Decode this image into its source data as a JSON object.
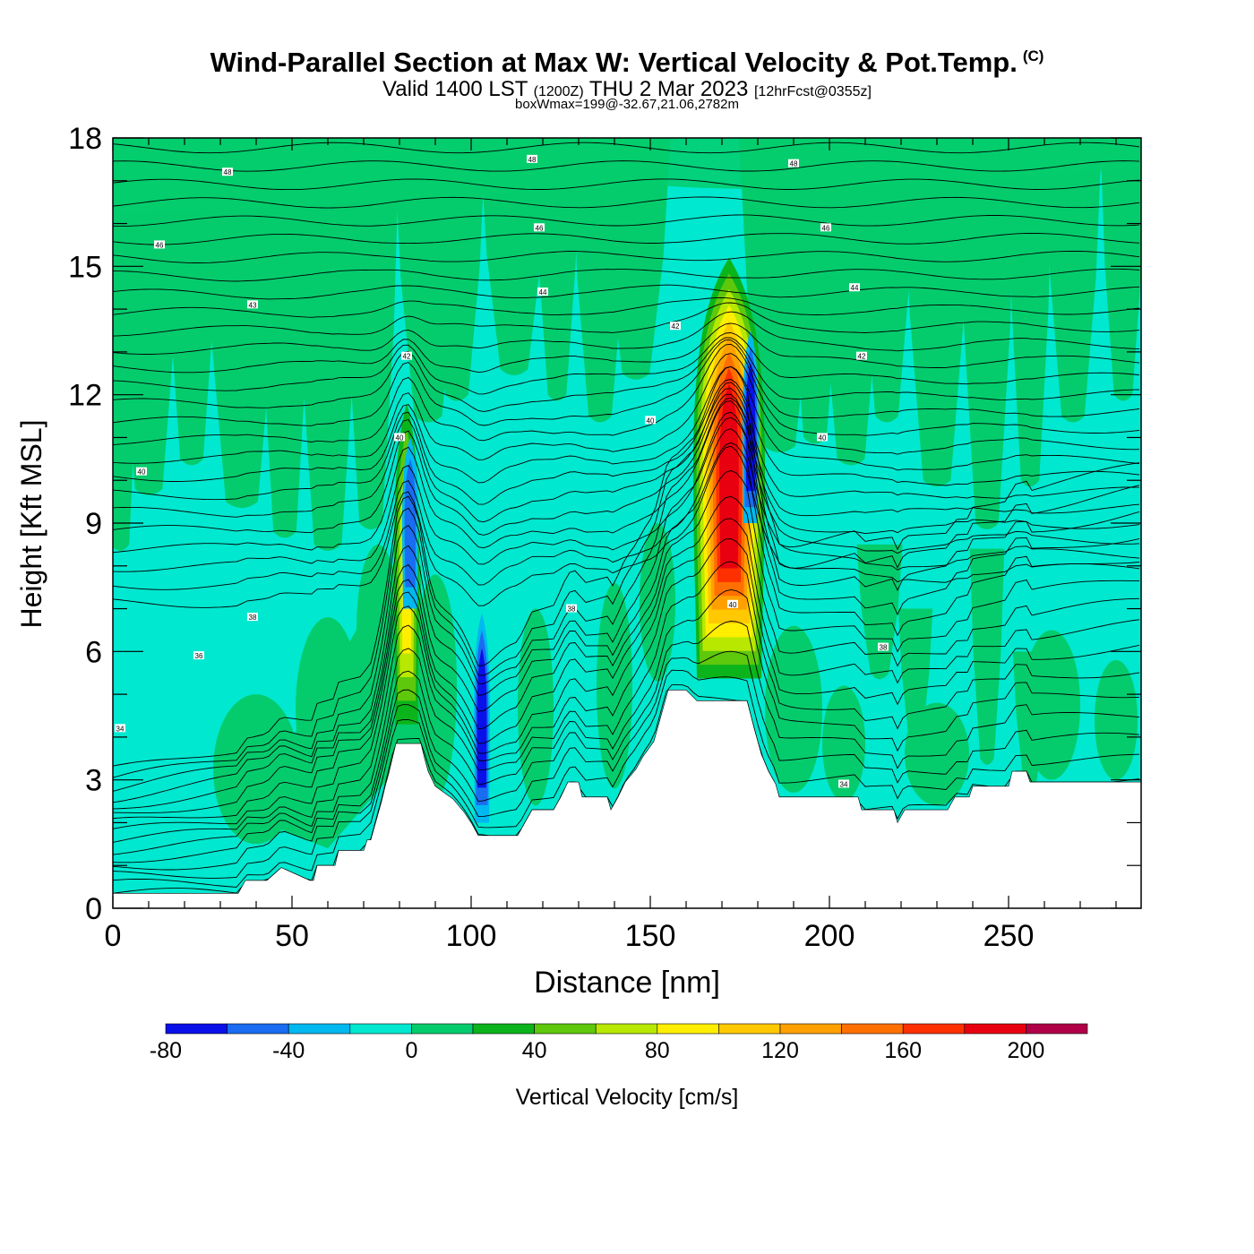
{
  "header": {
    "title": "Wind-Parallel Section at Max W: Vertical Velocity & Pot.Temp.",
    "copyright": "(C)",
    "valid_prefix": "Valid 1400 LST",
    "valid_utc": "(1200Z)",
    "valid_date": "THU 2 Mar 2023",
    "forecast": "[12hrFcst@0355z]",
    "boxwmax": "boxWmax=199@-32.67,21.06,2782m"
  },
  "colorbar": {
    "label": "Vertical Velocity [cm/s]",
    "tick_labels": [
      "-80",
      "-40",
      "0",
      "40",
      "80",
      "120",
      "160",
      "200"
    ],
    "colors": [
      "#0a10e8",
      "#1a6cf0",
      "#00b8f0",
      "#00e8d0",
      "#04cc6c",
      "#0cb41c",
      "#5ec80c",
      "#b8e800",
      "#ffee00",
      "#ffc800",
      "#ffa000",
      "#ff7000",
      "#ff3000",
      "#e80010",
      "#b00048"
    ]
  },
  "chart_data": {
    "type": "heatmap",
    "xlabel": "Distance [nm]",
    "ylabel": "Height [Kft MSL]",
    "xlim": [
      0,
      287
    ],
    "ylim": [
      0,
      18
    ],
    "x_ticks": [
      0,
      50,
      100,
      150,
      200,
      250
    ],
    "y_ticks": [
      0,
      3,
      6,
      9,
      12,
      15,
      18
    ],
    "field": "Vertical Velocity",
    "contour_field": "Potential Temperature",
    "color_levels": [
      -80,
      -60,
      -40,
      -20,
      0,
      20,
      40,
      60,
      80,
      100,
      120,
      140,
      160,
      180,
      200,
      220
    ],
    "terrain": [
      [
        0,
        0.35
      ],
      [
        35,
        0.35
      ],
      [
        37,
        0.65
      ],
      [
        43,
        0.65
      ],
      [
        47,
        0.95
      ],
      [
        55,
        0.65
      ],
      [
        56,
        0.65
      ],
      [
        57,
        1.0
      ],
      [
        62,
        1.0
      ],
      [
        63,
        1.35
      ],
      [
        70,
        1.35
      ],
      [
        71,
        1.6
      ],
      [
        72,
        1.6
      ],
      [
        73,
        1.9
      ],
      [
        74,
        2.2
      ],
      [
        75,
        2.5
      ],
      [
        76,
        2.85
      ],
      [
        77,
        3.15
      ],
      [
        78,
        3.5
      ],
      [
        79,
        3.85
      ],
      [
        86,
        3.85
      ],
      [
        87,
        3.5
      ],
      [
        88,
        3.2
      ],
      [
        90,
        2.85
      ],
      [
        95,
        2.55
      ],
      [
        98,
        2.25
      ],
      [
        100,
        2.0
      ],
      [
        102,
        1.7
      ],
      [
        113,
        1.7
      ],
      [
        115,
        2.0
      ],
      [
        117,
        2.3
      ],
      [
        123,
        2.3
      ],
      [
        125,
        2.6
      ],
      [
        127,
        2.95
      ],
      [
        130,
        2.95
      ],
      [
        131,
        2.6
      ],
      [
        138,
        2.6
      ],
      [
        139,
        2.3
      ],
      [
        141,
        2.6
      ],
      [
        143,
        2.95
      ],
      [
        146,
        3.25
      ],
      [
        148,
        3.55
      ],
      [
        151,
        3.9
      ],
      [
        153,
        4.5
      ],
      [
        155,
        5.1
      ],
      [
        160,
        5.1
      ],
      [
        163,
        4.85
      ],
      [
        177,
        4.85
      ],
      [
        179,
        4.2
      ],
      [
        181,
        3.6
      ],
      [
        183,
        3.2
      ],
      [
        185,
        2.9
      ],
      [
        186,
        2.6
      ],
      [
        208,
        2.6
      ],
      [
        209,
        2.3
      ],
      [
        218,
        2.3
      ],
      [
        219,
        2.0
      ],
      [
        221,
        2.3
      ],
      [
        233,
        2.3
      ],
      [
        235,
        2.6
      ],
      [
        239,
        2.6
      ],
      [
        240,
        2.85
      ],
      [
        250,
        2.85
      ],
      [
        251,
        3.2
      ],
      [
        255,
        3.2
      ],
      [
        256,
        2.95
      ],
      [
        287,
        2.95
      ]
    ],
    "updrafts": [
      {
        "x": 82,
        "base": 3.9,
        "top": 11.8,
        "w_max": 90
      },
      {
        "x": 172,
        "base": 4.85,
        "top": 15.2,
        "w_max": 199
      }
    ],
    "downdrafts": [
      {
        "x": 83,
        "base": 7.0,
        "top": 11.0,
        "w_min": -40
      },
      {
        "x": 103,
        "base": 2.0,
        "top": 6.9,
        "w_min": -60
      },
      {
        "x": 178,
        "base": 9.0,
        "top": 13.5,
        "w_min": -60
      }
    ],
    "theta_contour_labels": [
      {
        "text": "48",
        "x": 32,
        "y": 17.2
      },
      {
        "text": "48",
        "x": 117,
        "y": 17.5
      },
      {
        "text": "48",
        "x": 190,
        "y": 17.4
      },
      {
        "text": "46",
        "x": 13,
        "y": 15.5
      },
      {
        "text": "46",
        "x": 119,
        "y": 15.9
      },
      {
        "text": "46",
        "x": 199,
        "y": 15.9
      },
      {
        "text": "44",
        "x": 120,
        "y": 14.4
      },
      {
        "text": "44",
        "x": 207,
        "y": 14.5
      },
      {
        "text": "43",
        "x": 39,
        "y": 14.1
      },
      {
        "text": "42",
        "x": 82,
        "y": 12.9
      },
      {
        "text": "42",
        "x": 157,
        "y": 13.6
      },
      {
        "text": "42",
        "x": 209,
        "y": 12.9
      },
      {
        "text": "40",
        "x": 80,
        "y": 11.0
      },
      {
        "text": "40",
        "x": 150,
        "y": 11.4
      },
      {
        "text": "40",
        "x": 198,
        "y": 11.0
      },
      {
        "text": "40",
        "x": 8,
        "y": 10.2
      },
      {
        "text": "40",
        "x": 173,
        "y": 7.1
      },
      {
        "text": "38",
        "x": 128,
        "y": 7.0
      },
      {
        "text": "38",
        "x": 39,
        "y": 6.8
      },
      {
        "text": "38",
        "x": 215,
        "y": 6.1
      },
      {
        "text": "36",
        "x": 24,
        "y": 5.9
      },
      {
        "text": "34",
        "x": 2,
        "y": 4.2
      },
      {
        "text": "34",
        "x": 204,
        "y": 2.9
      }
    ]
  }
}
